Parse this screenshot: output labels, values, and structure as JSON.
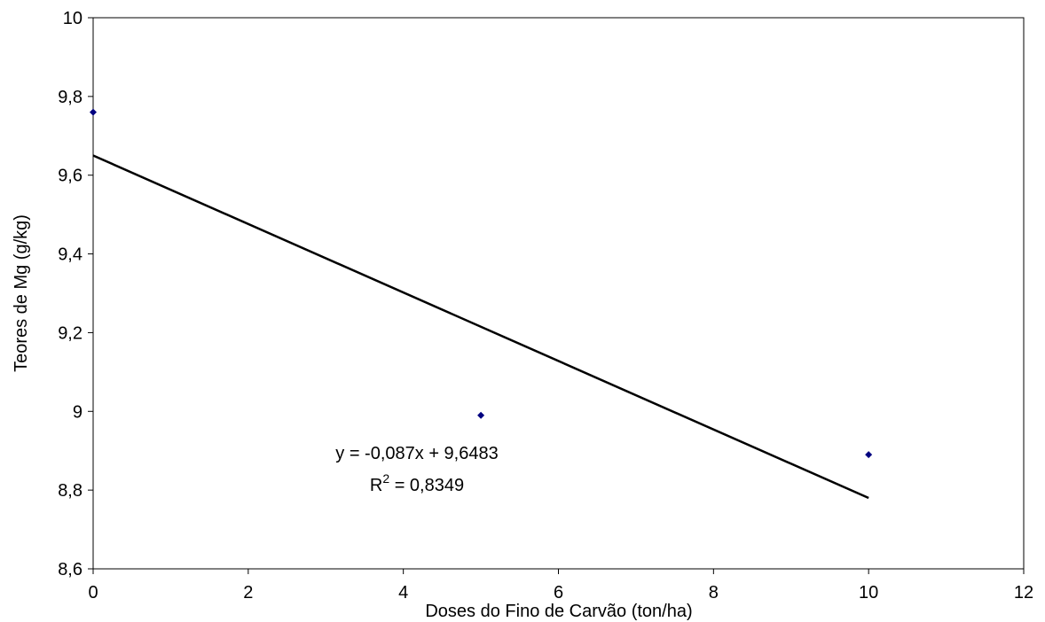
{
  "chart_data": {
    "type": "scatter",
    "x_label": "Doses do Fino de Carvão (ton/ha)",
    "y_label": "Teores de Mg (g/kg)",
    "series": [
      {
        "x": [
          0,
          5,
          10
        ],
        "values": [
          9.76,
          8.99,
          8.89
        ],
        "color": "#000080"
      }
    ],
    "trendline": {
      "x": [
        0,
        10
      ],
      "values": [
        9.65,
        8.78
      ],
      "color": "#000000"
    },
    "equation": "y = -0,087x + 9,6483",
    "r_squared": {
      "base": "R",
      "sup": "2",
      "rest": " = 0,8349"
    },
    "xlim": [
      0,
      12
    ],
    "xticks": [
      0,
      2,
      4,
      6,
      8,
      10,
      12
    ],
    "ylim": [
      8.6,
      10
    ],
    "yticks": [
      {
        "value": 8.6,
        "label": "8,6"
      },
      {
        "value": 8.8,
        "label": "8,8"
      },
      9,
      {
        "value": 9.2,
        "label": "9,2"
      },
      {
        "value": 9.4,
        "label": "9,4"
      },
      {
        "value": 9.6,
        "label": "9,6"
      },
      {
        "value": 9.8,
        "label": "9,8"
      },
      10
    ],
    "grid": false
  }
}
